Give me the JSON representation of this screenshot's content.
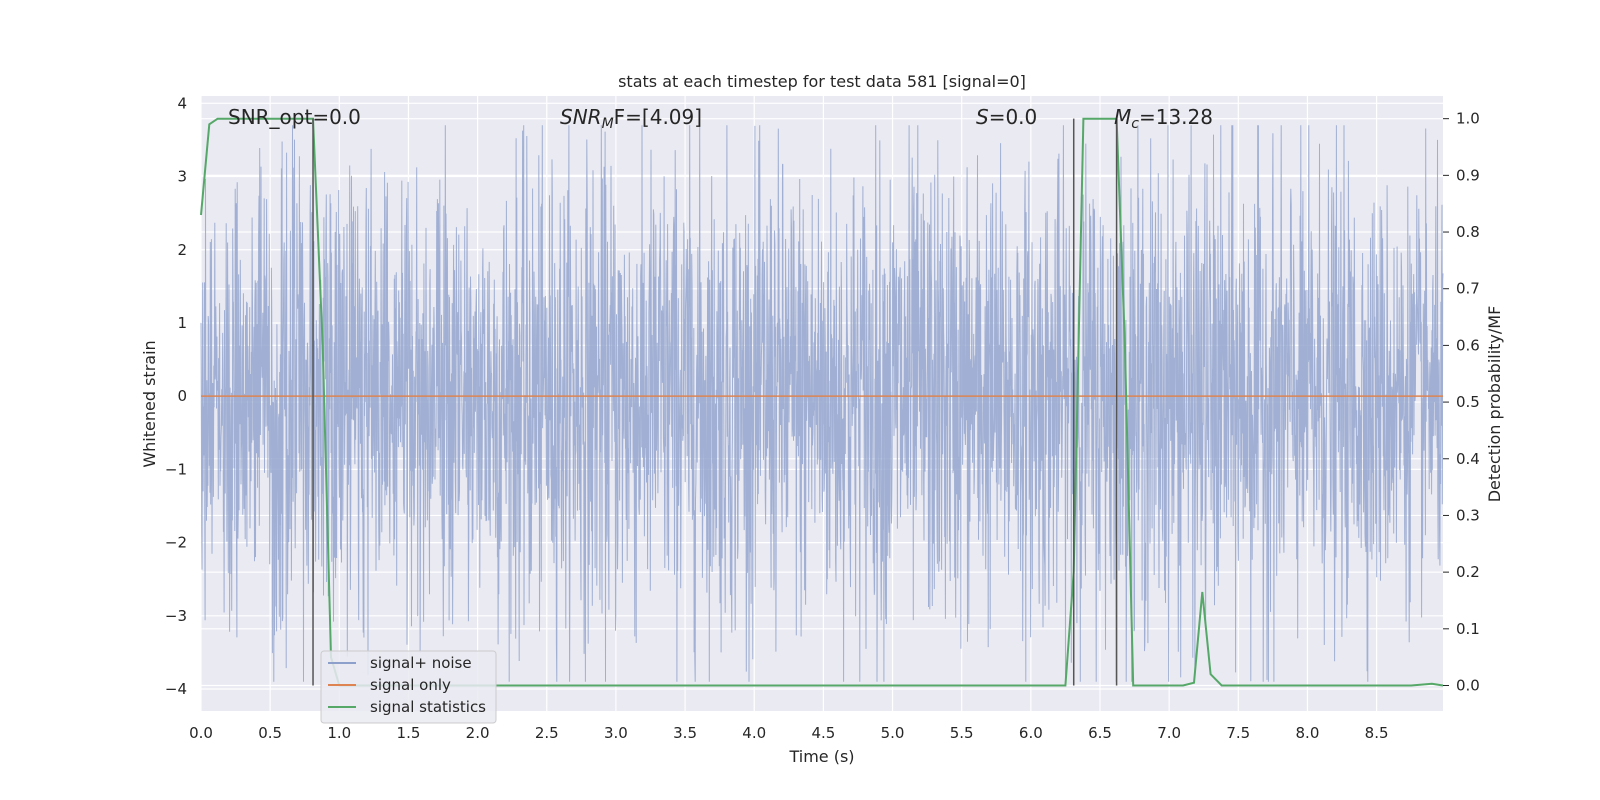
{
  "chart_data": {
    "type": "line",
    "title": "stats at each timestep for test data 581 [signal=0]",
    "xlabel": "Time (s)",
    "ylabel": "Whitened strain",
    "y2label": "Detection probability/MF",
    "xlim": [
      0.0,
      8.98
    ],
    "ylim": [
      -4.3,
      4.1
    ],
    "y2lim": [
      -0.045,
      1.04
    ],
    "x_ticks": [
      "0.0",
      "0.5",
      "1.0",
      "1.5",
      "2.0",
      "2.5",
      "3.0",
      "3.5",
      "4.0",
      "4.5",
      "5.0",
      "5.5",
      "6.0",
      "6.5",
      "7.0",
      "7.5",
      "8.0",
      "8.5"
    ],
    "y_ticks": [
      "4",
      "3",
      "2",
      "1",
      "0",
      "−1",
      "−2",
      "−3",
      "−4"
    ],
    "y2_ticks": [
      "1.0",
      "0.9",
      "0.8",
      "0.7",
      "0.6",
      "0.5",
      "0.4",
      "0.3",
      "0.2",
      "0.1",
      "0.0"
    ],
    "grid": true,
    "legend_position": "lower-left",
    "annotations": {
      "snr_opt": "SNR_opt=0.0",
      "snr_mf_main": "SNR",
      "snr_mf_sub": "M",
      "snr_mf_rest": "F=[4.09]",
      "s_label": "S",
      "s_rest": "=0.0",
      "mc_main": "M",
      "mc_sub": "c",
      "mc_rest": "=13.28"
    },
    "vertical_markers_x": [
      0.81,
      6.31,
      6.62
    ],
    "series": [
      {
        "name": "signal+ noise",
        "color": "#8da0cb",
        "description_values": "noise fluctuating roughly between -3.8 and 3.7 around 0",
        "amplitude_envelope": [
          [
            0.0,
            2.0
          ],
          [
            0.5,
            2.6
          ],
          [
            1.0,
            2.4
          ],
          [
            2.0,
            2.5
          ],
          [
            3.0,
            2.6
          ],
          [
            4.0,
            2.5
          ],
          [
            5.0,
            2.6
          ],
          [
            6.0,
            2.4
          ],
          [
            7.0,
            2.6
          ],
          [
            8.0,
            2.5
          ],
          [
            8.98,
            2.0
          ]
        ]
      },
      {
        "name": "signal only",
        "color": "#dd8452",
        "x": [
          0.0,
          8.98
        ],
        "y": [
          0.0,
          0.0
        ]
      },
      {
        "name": "signal statistics",
        "color": "#55a868",
        "x": [
          0.0,
          0.06,
          0.12,
          0.3,
          0.5,
          0.7,
          0.81,
          0.88,
          0.94,
          1.0,
          6.25,
          6.31,
          6.38,
          6.5,
          6.62,
          6.68,
          6.74,
          7.1,
          7.18,
          7.24,
          7.3,
          7.38,
          8.75,
          8.9,
          8.98
        ],
        "y": [
          0.83,
          0.99,
          1.0,
          1.0,
          1.0,
          1.0,
          1.0,
          0.6,
          0.05,
          0.0,
          0.0,
          0.2,
          1.0,
          1.0,
          1.0,
          0.6,
          0.0,
          0.0,
          0.005,
          0.165,
          0.02,
          0.0,
          0.0,
          0.003,
          0.0
        ]
      }
    ]
  }
}
